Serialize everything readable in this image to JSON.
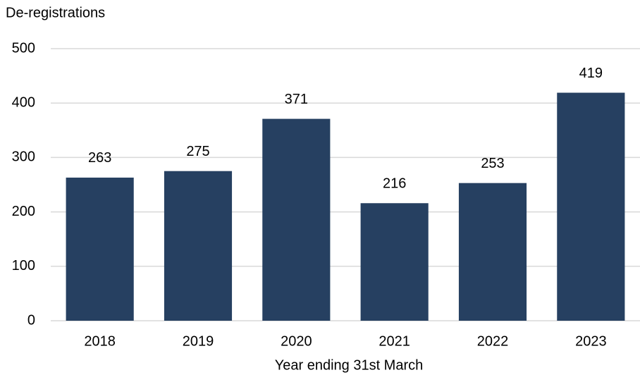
{
  "chart_data": {
    "type": "bar",
    "y_axis_label": "De-registrations",
    "x_axis_label": "Year ending 31st March",
    "categories": [
      "2018",
      "2019",
      "2020",
      "2021",
      "2022",
      "2023"
    ],
    "values": [
      263,
      275,
      371,
      216,
      253,
      419
    ],
    "color": "#264061",
    "ylim": [
      0,
      500
    ],
    "yticks": [
      0,
      100,
      200,
      300,
      400,
      500
    ],
    "grid": true
  }
}
